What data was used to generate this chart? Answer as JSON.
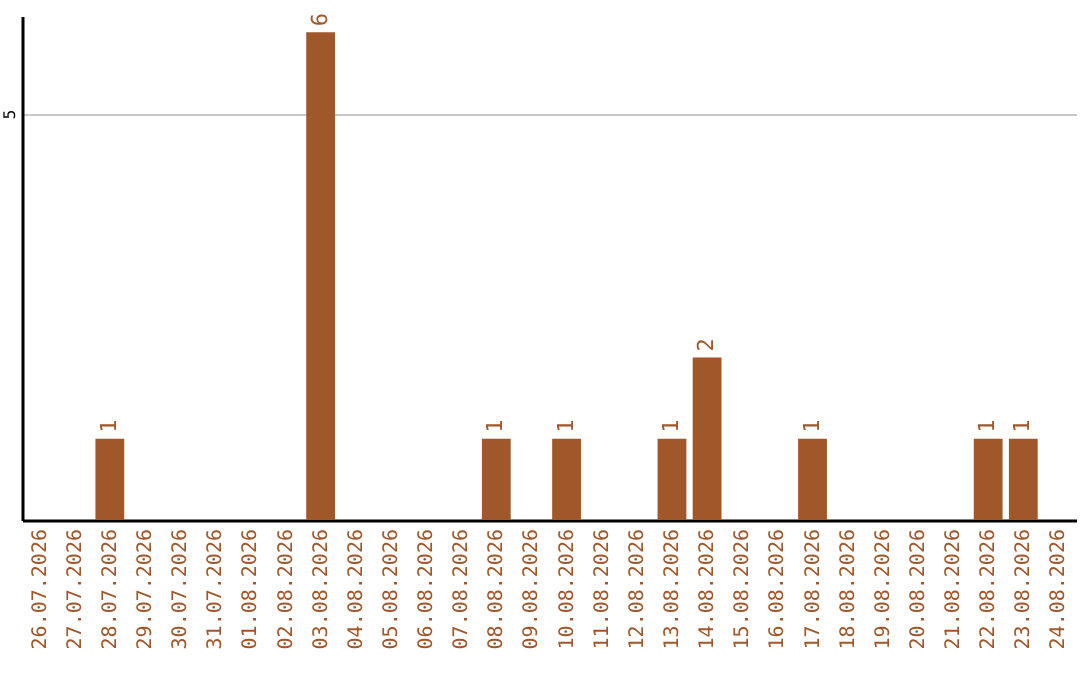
{
  "chart_data": {
    "type": "bar",
    "categories": [
      "26.07.2026",
      "27.07.2026",
      "28.07.2026",
      "29.07.2026",
      "30.07.2026",
      "31.07.2026",
      "01.08.2026",
      "02.08.2026",
      "03.08.2026",
      "04.08.2026",
      "05.08.2026",
      "06.08.2026",
      "07.08.2026",
      "08.08.2026",
      "09.08.2026",
      "10.08.2026",
      "11.08.2026",
      "12.08.2026",
      "13.08.2026",
      "14.08.2026",
      "15.08.2026",
      "16.08.2026",
      "17.08.2026",
      "18.08.2026",
      "19.08.2026",
      "20.08.2026",
      "21.08.2026",
      "22.08.2026",
      "23.08.2026",
      "24.08.2026"
    ],
    "values": [
      null,
      null,
      1,
      null,
      null,
      null,
      null,
      null,
      6,
      null,
      null,
      null,
      null,
      1,
      null,
      1,
      null,
      null,
      1,
      2,
      null,
      null,
      1,
      null,
      null,
      null,
      null,
      1,
      1,
      null
    ],
    "color": "#a0572a",
    "ylim": [
      0,
      6.2
    ],
    "yticks": [
      5
    ],
    "grid": "y",
    "data_labels": true
  }
}
